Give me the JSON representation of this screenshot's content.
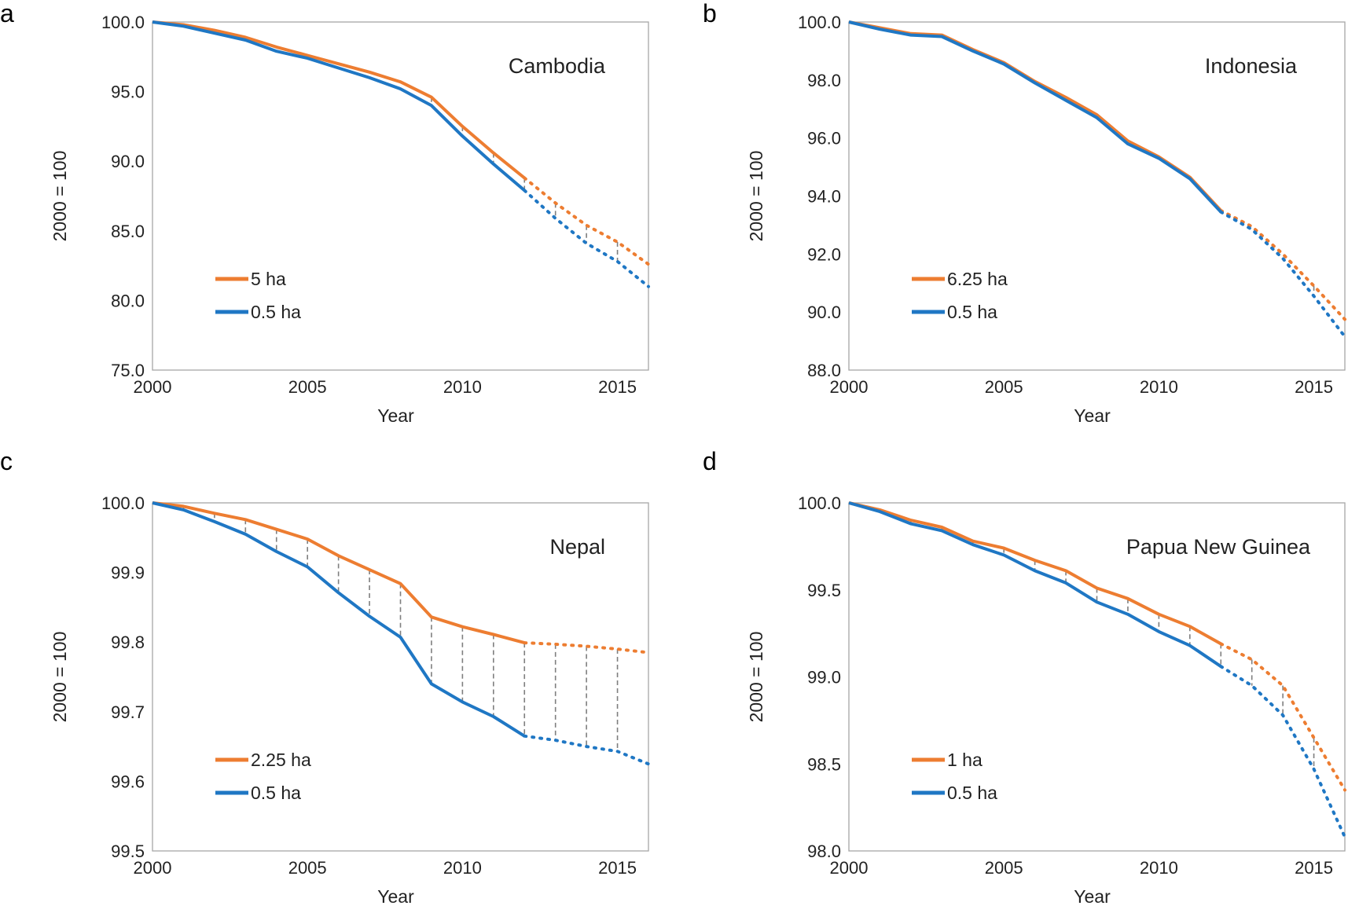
{
  "figure_description": "",
  "chart_data": [
    {
      "type": "line",
      "panel": "a",
      "title": "Cambodia",
      "xlabel": "Year",
      "ylabel": "2000 = 100",
      "xlim": [
        2000,
        2016
      ],
      "ylim": [
        75.0,
        100.0
      ],
      "xticks": [
        "2000",
        "2005",
        "2010",
        "2015"
      ],
      "yticks": [
        "100.0",
        "95.0",
        "90.0",
        "85.0",
        "80.0",
        "75.0"
      ],
      "projection_start": 2012,
      "connectors": [
        2009,
        2010,
        2011,
        2012,
        2013,
        2014,
        2015
      ],
      "x": [
        2000,
        2001,
        2002,
        2003,
        2004,
        2005,
        2006,
        2007,
        2008,
        2009,
        2010,
        2011,
        2012,
        2013,
        2014,
        2015,
        2016
      ],
      "series": [
        {
          "name": "5 ha",
          "color": "#ED7D31",
          "values": [
            100.0,
            99.8,
            99.4,
            98.9,
            98.2,
            97.6,
            97.0,
            96.4,
            95.7,
            94.6,
            92.5,
            90.6,
            88.8,
            87.0,
            85.4,
            84.2,
            82.6
          ]
        },
        {
          "name": "0.5 ha",
          "color": "#1F77C4",
          "values": [
            100.0,
            99.7,
            99.2,
            98.7,
            97.9,
            97.4,
            96.7,
            96.0,
            95.2,
            94.0,
            91.8,
            89.8,
            87.9,
            85.9,
            84.1,
            82.8,
            81.0
          ]
        }
      ]
    },
    {
      "type": "line",
      "panel": "b",
      "title": "Indonesia",
      "xlabel": "Year",
      "ylabel": "2000 = 100",
      "xlim": [
        2000,
        2016
      ],
      "ylim": [
        88.0,
        100.0
      ],
      "xticks": [
        "2000",
        "2005",
        "2010",
        "2015"
      ],
      "yticks": [
        "100.0",
        "98.0",
        "96.0",
        "94.0",
        "92.0",
        "90.0",
        "88.0"
      ],
      "projection_start": 2012,
      "connectors": [
        2015
      ],
      "x": [
        2000,
        2001,
        2002,
        2003,
        2004,
        2005,
        2006,
        2007,
        2008,
        2009,
        2010,
        2011,
        2012,
        2013,
        2014,
        2015,
        2016
      ],
      "series": [
        {
          "name": "6.25 ha",
          "color": "#ED7D31",
          "values": [
            100.0,
            99.8,
            99.6,
            99.55,
            99.05,
            98.6,
            97.95,
            97.4,
            96.8,
            95.9,
            95.35,
            94.65,
            93.5,
            92.95,
            92.0,
            90.9,
            89.75
          ]
        },
        {
          "name": "0.5 ha",
          "color": "#1F77C4",
          "values": [
            100.0,
            99.75,
            99.55,
            99.5,
            99.0,
            98.55,
            97.9,
            97.3,
            96.7,
            95.8,
            95.3,
            94.6,
            93.45,
            92.85,
            91.85,
            90.55,
            89.15
          ]
        }
      ]
    },
    {
      "type": "line",
      "panel": "c",
      "title": "Nepal",
      "xlabel": "Year",
      "ylabel": "2000 = 100",
      "xlim": [
        2000,
        2016
      ],
      "ylim": [
        99.5,
        100.0
      ],
      "xticks": [
        "2000",
        "2005",
        "2010",
        "2015"
      ],
      "yticks": [
        "100.0",
        "99.9",
        "99.8",
        "99.7",
        "99.6",
        "99.5"
      ],
      "projection_start": 2012,
      "connectors": [
        2001,
        2002,
        2003,
        2004,
        2005,
        2006,
        2007,
        2008,
        2009,
        2010,
        2011,
        2012,
        2013,
        2014,
        2015
      ],
      "x": [
        2000,
        2001,
        2002,
        2003,
        2004,
        2005,
        2006,
        2007,
        2008,
        2009,
        2010,
        2011,
        2012,
        2013,
        2014,
        2015,
        2016
      ],
      "series": [
        {
          "name": "2.25 ha",
          "color": "#ED7D31",
          "values": [
            100.0,
            99.995,
            99.985,
            99.976,
            99.962,
            99.948,
            99.924,
            99.904,
            99.884,
            99.836,
            99.822,
            99.811,
            99.799,
            99.797,
            99.794,
            99.79,
            99.785
          ]
        },
        {
          "name": "0.5 ha",
          "color": "#1F77C4",
          "values": [
            100.0,
            99.99,
            99.973,
            99.955,
            99.93,
            99.908,
            99.871,
            99.837,
            99.807,
            99.74,
            99.714,
            99.693,
            99.665,
            99.659,
            99.65,
            99.643,
            99.625
          ]
        }
      ]
    },
    {
      "type": "line",
      "panel": "d",
      "title": "Papua New Guinea",
      "xlabel": "Year",
      "ylabel": "2000 = 100",
      "xlim": [
        2000,
        2016
      ],
      "ylim": [
        98.0,
        100.0
      ],
      "xticks": [
        "2000",
        "2005",
        "2010",
        "2015"
      ],
      "yticks": [
        "100.0",
        "99.5",
        "99.0",
        "98.5",
        "98.0"
      ],
      "projection_start": 2012,
      "connectors": [
        2002,
        2003,
        2004,
        2005,
        2006,
        2007,
        2008,
        2009,
        2010,
        2011,
        2012,
        2013,
        2014,
        2015
      ],
      "x": [
        2000,
        2001,
        2002,
        2003,
        2004,
        2005,
        2006,
        2007,
        2008,
        2009,
        2010,
        2011,
        2012,
        2013,
        2014,
        2015,
        2016
      ],
      "series": [
        {
          "name": "1 ha",
          "color": "#ED7D31",
          "values": [
            100.0,
            99.96,
            99.9,
            99.86,
            99.78,
            99.74,
            99.67,
            99.61,
            99.51,
            99.45,
            99.36,
            99.29,
            99.19,
            99.1,
            98.95,
            98.65,
            98.35
          ]
        },
        {
          "name": "0.5 ha",
          "color": "#1F77C4",
          "values": [
            100.0,
            99.95,
            99.88,
            99.84,
            99.76,
            99.7,
            99.61,
            99.54,
            99.43,
            99.36,
            99.26,
            99.18,
            99.06,
            98.95,
            98.78,
            98.47,
            98.08
          ]
        }
      ]
    }
  ]
}
